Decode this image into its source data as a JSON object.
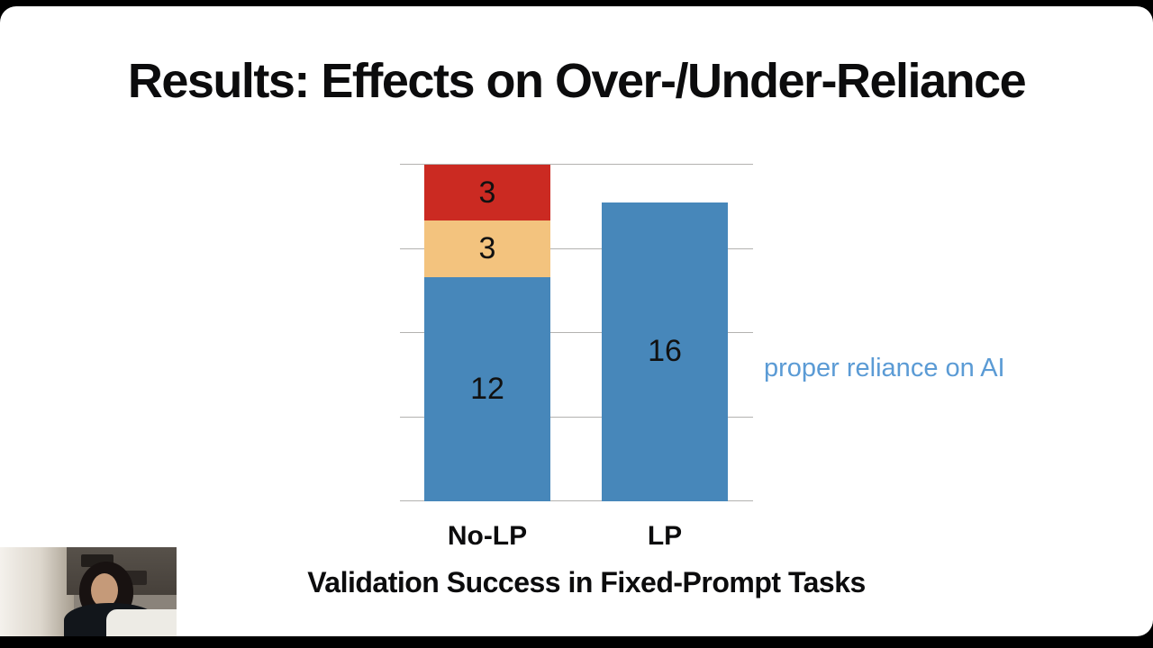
{
  "slide": {
    "title": "Results: Effects on Over-/Under-Reliance",
    "annotation": "proper reliance on AI",
    "caption": "Validation Success in Fixed-Prompt Tasks"
  },
  "chart_data": {
    "type": "bar",
    "variant": "stacked",
    "title": "",
    "xlabel": "Validation Success in Fixed-Prompt Tasks",
    "ylabel": "",
    "ylim": [
      0,
      18
    ],
    "grid": true,
    "gridline_values": [
      0,
      4.5,
      9,
      13.5,
      18
    ],
    "categories": [
      "No-LP",
      "LP"
    ],
    "series": [
      {
        "name": "proper reliance on AI (blue segment)",
        "color": "#4787ba",
        "values": [
          12,
          16
        ]
      },
      {
        "name": "orange segment",
        "color": "#f3c37e",
        "values": [
          3,
          0
        ]
      },
      {
        "name": "red segment",
        "color": "#cb2a22",
        "values": [
          3,
          0
        ]
      }
    ],
    "data_labels": {
      "No-LP": [
        "12",
        "3",
        "3"
      ],
      "LP": [
        "16"
      ]
    },
    "annotation": {
      "text": "proper reliance on AI",
      "color": "#5b9bd5",
      "target_category": "LP"
    }
  },
  "colors": {
    "bar_blue": "#4787ba",
    "bar_orange": "#f3c37e",
    "bar_red": "#cb2a22",
    "annotation_blue": "#5b9bd5",
    "gridline_gray": "#b3b2b0"
  },
  "webcam": {
    "description": "speaker video thumbnail"
  }
}
